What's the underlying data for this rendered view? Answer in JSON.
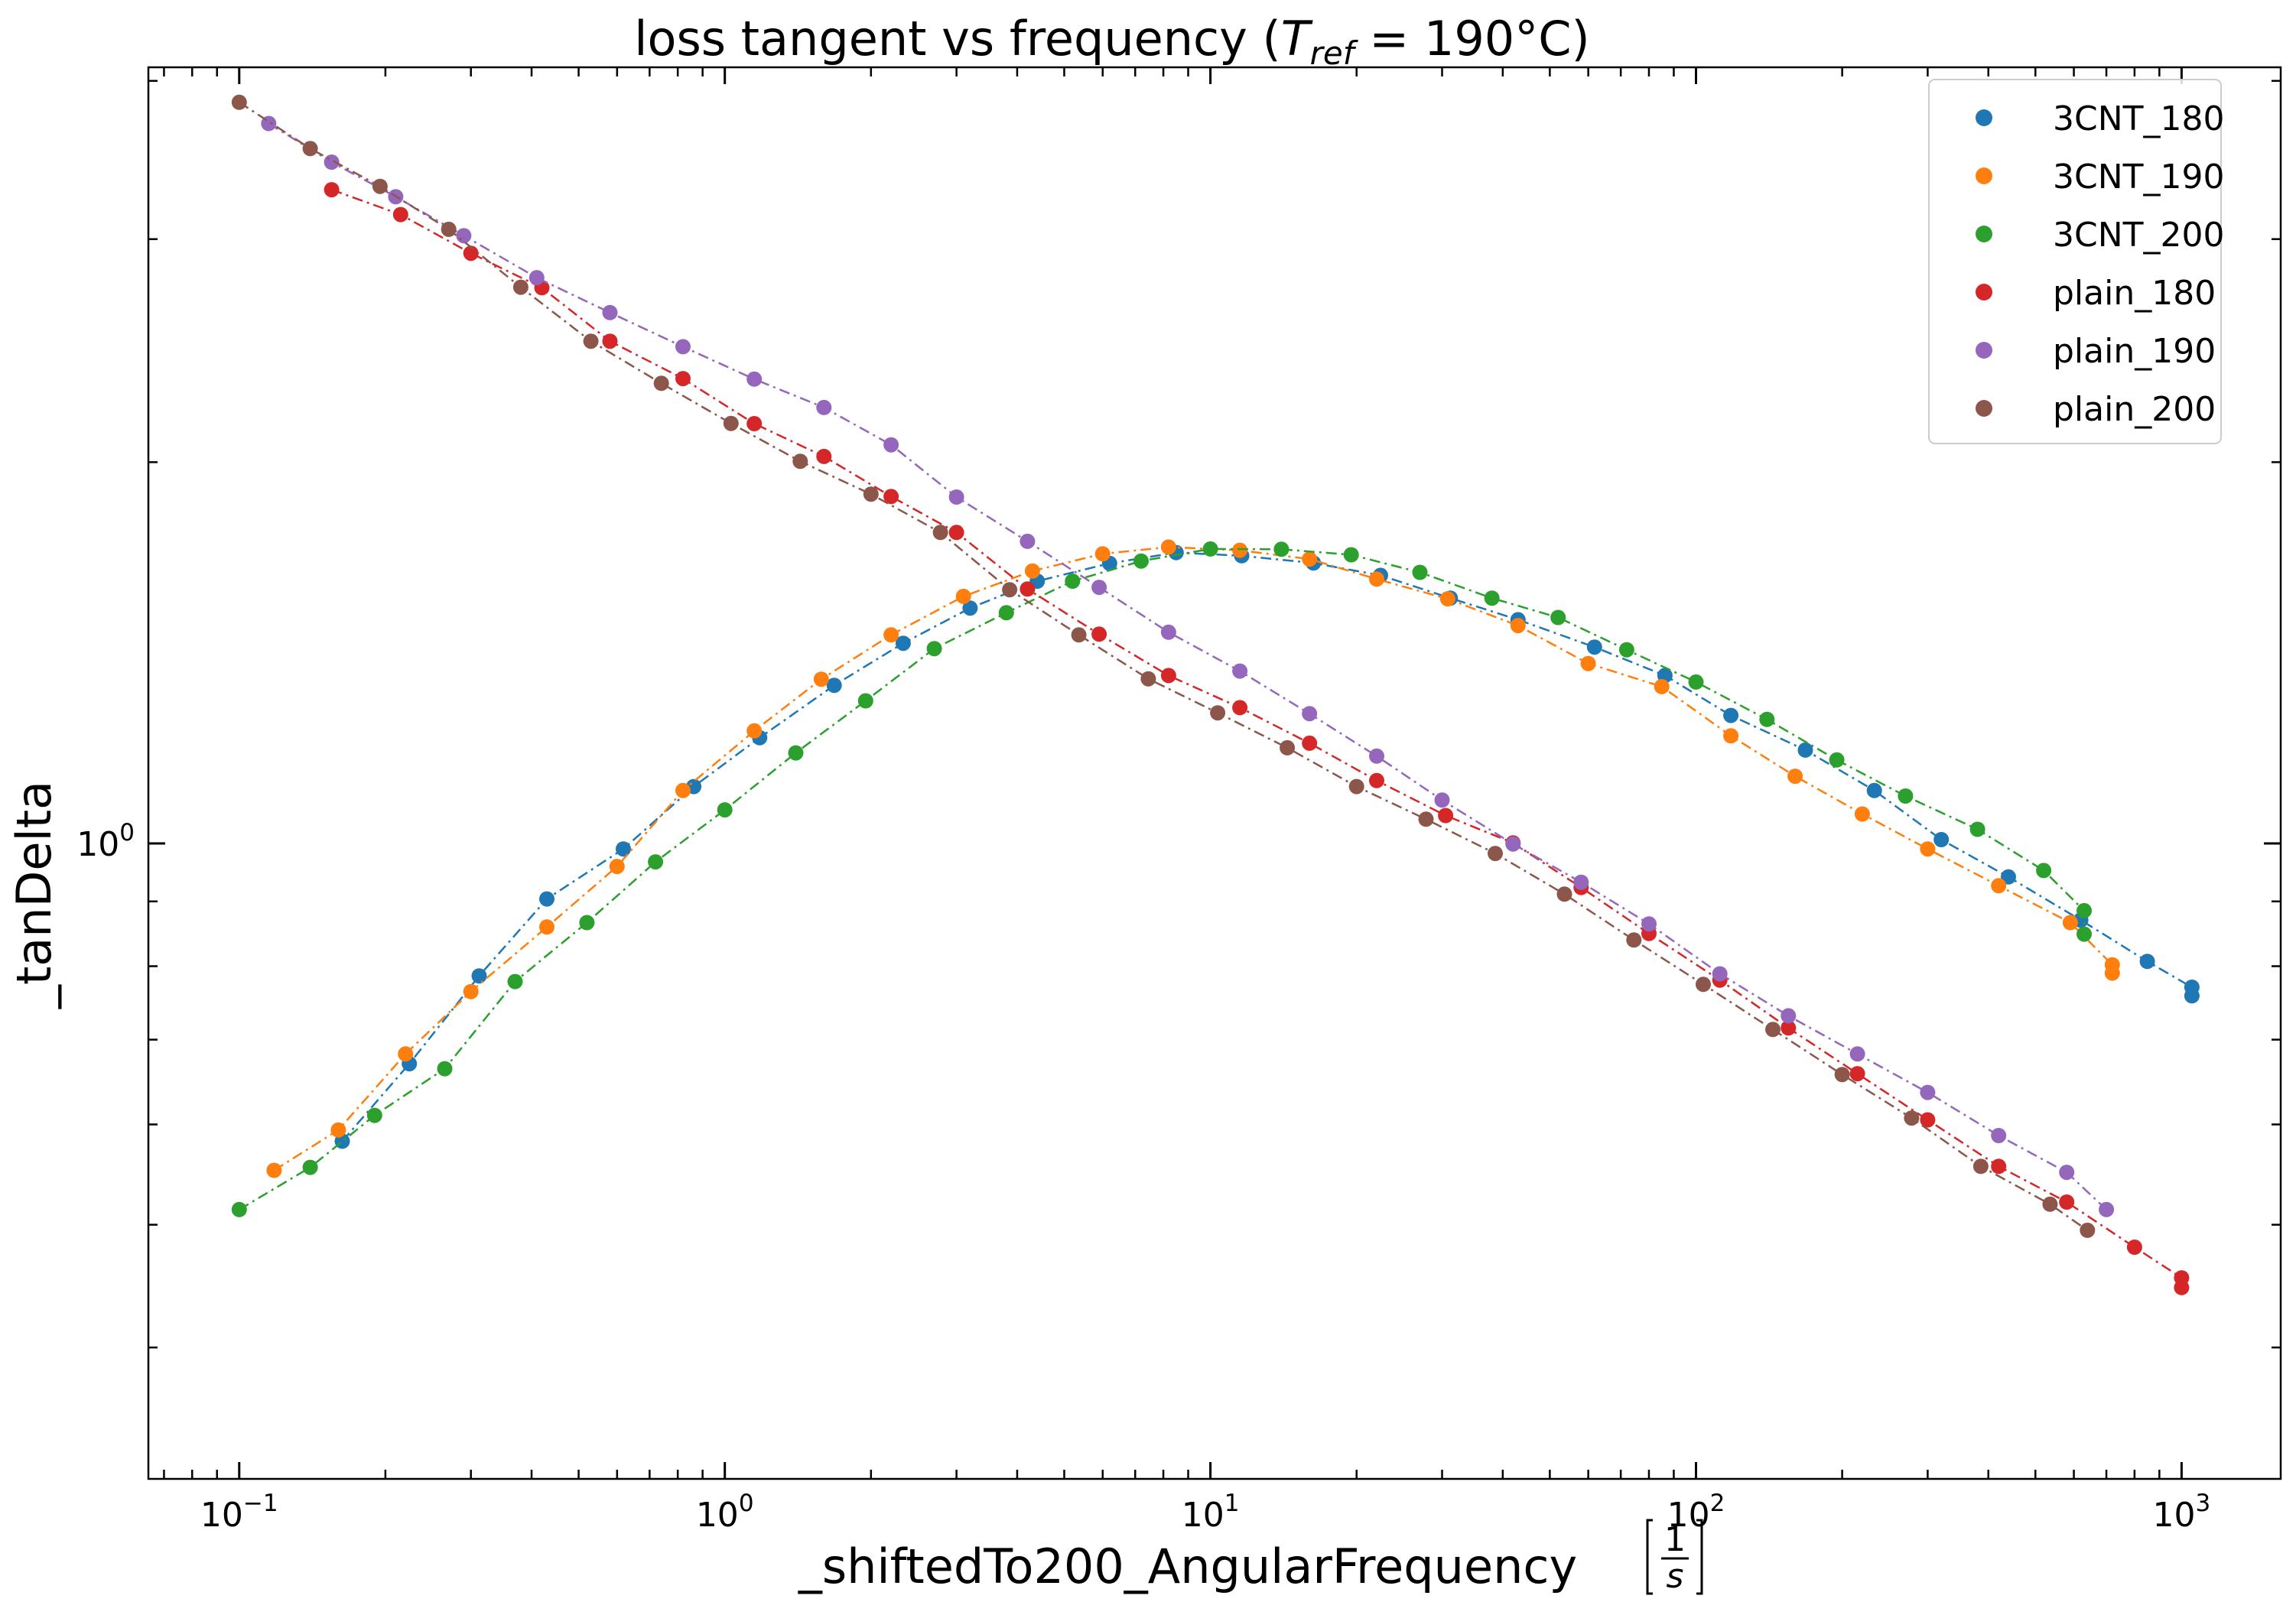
{
  "chart_data": {
    "type": "scatter",
    "title": {
      "main": "loss tangent vs frequency (",
      "sym": "T",
      "sub": "ref",
      "rest": " = 190°C)"
    },
    "xlabel": "_shiftedTo200_AngularFrequency",
    "xunit": {
      "num": "1",
      "den": "s"
    },
    "ylabel": "_tanDelta",
    "xscale": "log",
    "yscale": "log",
    "xlim": [
      0.065,
      1600
    ],
    "ylim": [
      0.315,
      4.1
    ],
    "xticks": [
      {
        "value": 0.1,
        "base": "10",
        "exp": "−1"
      },
      {
        "value": 1,
        "base": "10",
        "exp": "0"
      },
      {
        "value": 10,
        "base": "10",
        "exp": "1"
      },
      {
        "value": 100,
        "base": "10",
        "exp": "2"
      },
      {
        "value": 1000,
        "base": "10",
        "exp": "3"
      }
    ],
    "yticks": [
      {
        "value": 1,
        "base": "10",
        "exp": "0"
      }
    ],
    "grid": false,
    "legend": "top-right",
    "series": [
      {
        "name": "3CNT_180",
        "color": "#1f77b4",
        "x": [
          0.163,
          0.224,
          0.312,
          0.43,
          0.618,
          0.863,
          1.18,
          1.68,
          2.33,
          3.2,
          4.4,
          6.2,
          8.5,
          11.6,
          16.3,
          22.4,
          31.2,
          43.0,
          61.8,
          86.3,
          118,
          168,
          233,
          320,
          440,
          620,
          850,
          1050,
          1050
        ],
        "y": [
          0.582,
          0.67,
          0.786,
          0.904,
          0.99,
          1.109,
          1.212,
          1.333,
          1.439,
          1.534,
          1.611,
          1.664,
          1.697,
          1.687,
          1.665,
          1.628,
          1.562,
          1.502,
          1.429,
          1.357,
          1.262,
          1.185,
          1.101,
          1.007,
          0.941,
          0.87,
          0.807,
          0.77,
          0.758
        ]
      },
      {
        "name": "3CNT_190",
        "color": "#ff7f0e",
        "x": [
          0.118,
          0.16,
          0.22,
          0.3,
          0.43,
          0.6,
          0.82,
          1.15,
          1.58,
          2.2,
          3.1,
          4.3,
          6.0,
          8.2,
          11.5,
          16.0,
          22.0,
          30.8,
          43.0,
          60.0,
          85.0,
          118,
          160,
          220,
          300,
          420,
          590,
          720,
          720
        ],
        "y": [
          0.552,
          0.594,
          0.682,
          0.764,
          0.859,
          0.959,
          1.101,
          1.227,
          1.348,
          1.461,
          1.567,
          1.641,
          1.693,
          1.714,
          1.704,
          1.677,
          1.617,
          1.56,
          1.486,
          1.387,
          1.33,
          1.216,
          1.13,
          1.055,
          0.99,
          0.926,
          0.866,
          0.802,
          0.79
        ]
      },
      {
        "name": "3CNT_200",
        "color": "#2ca02c",
        "x": [
          0.1,
          0.14,
          0.19,
          0.265,
          0.37,
          0.52,
          0.72,
          1.0,
          1.4,
          1.95,
          2.7,
          3.8,
          5.2,
          7.2,
          10.0,
          14.0,
          19.5,
          27.0,
          38.0,
          52.0,
          72.0,
          100,
          140,
          195,
          270,
          380,
          520,
          630,
          630
        ],
        "y": [
          0.514,
          0.555,
          0.61,
          0.664,
          0.778,
          0.866,
          0.967,
          1.063,
          1.179,
          1.296,
          1.425,
          1.521,
          1.611,
          1.671,
          1.708,
          1.707,
          1.69,
          1.637,
          1.562,
          1.508,
          1.422,
          1.341,
          1.253,
          1.164,
          1.09,
          1.026,
          0.952,
          0.885,
          0.848
        ]
      },
      {
        "name": "plain_180",
        "color": "#d62728",
        "x": [
          0.155,
          0.215,
          0.3,
          0.42,
          0.58,
          0.82,
          1.15,
          1.6,
          2.2,
          3.0,
          4.2,
          5.9,
          8.2,
          11.5,
          16.0,
          22.0,
          30.5,
          42.0,
          58.0,
          80.0,
          112,
          155,
          215,
          300,
          420,
          580,
          800,
          1000,
          1000
        ],
        "y": [
          3.282,
          3.137,
          2.924,
          2.746,
          2.492,
          2.328,
          2.145,
          2.021,
          1.879,
          1.76,
          1.588,
          1.463,
          1.357,
          1.28,
          1.2,
          1.121,
          1.052,
          1.001,
          0.923,
          0.849,
          0.78,
          0.715,
          0.658,
          0.605,
          0.556,
          0.521,
          0.48,
          0.454,
          0.446
        ]
      },
      {
        "name": "plain_190",
        "color": "#9467bd",
        "x": [
          0.115,
          0.155,
          0.21,
          0.29,
          0.41,
          0.58,
          0.82,
          1.15,
          1.6,
          2.2,
          3.0,
          4.2,
          5.9,
          8.2,
          11.5,
          16.0,
          22.0,
          30.0,
          42.0,
          58.0,
          80.0,
          112,
          155,
          215,
          300,
          420,
          580,
          700
        ],
        "y": [
          3.702,
          3.451,
          3.24,
          3.019,
          2.797,
          2.625,
          2.467,
          2.326,
          2.209,
          2.064,
          1.877,
          1.732,
          1.593,
          1.468,
          1.368,
          1.266,
          1.172,
          1.082,
          0.999,
          0.932,
          0.864,
          0.789,
          0.731,
          0.682,
          0.636,
          0.588,
          0.55,
          0.514
        ]
      },
      {
        "name": "plain_200",
        "color": "#8c564b",
        "x": [
          0.1,
          0.14,
          0.195,
          0.27,
          0.38,
          0.53,
          0.74,
          1.03,
          1.43,
          2.0,
          2.78,
          3.86,
          5.36,
          7.45,
          10.35,
          14.4,
          20.0,
          27.8,
          38.6,
          53.6,
          74.5,
          103.5,
          144,
          200,
          278,
          386,
          536,
          640
        ],
        "y": [
          3.847,
          3.537,
          3.302,
          3.054,
          2.749,
          2.492,
          2.308,
          2.146,
          2.003,
          1.887,
          1.76,
          1.586,
          1.461,
          1.349,
          1.268,
          1.19,
          1.109,
          1.045,
          0.982,
          0.912,
          0.839,
          0.774,
          0.713,
          0.657,
          0.607,
          0.556,
          0.519,
          0.495
        ]
      }
    ]
  }
}
